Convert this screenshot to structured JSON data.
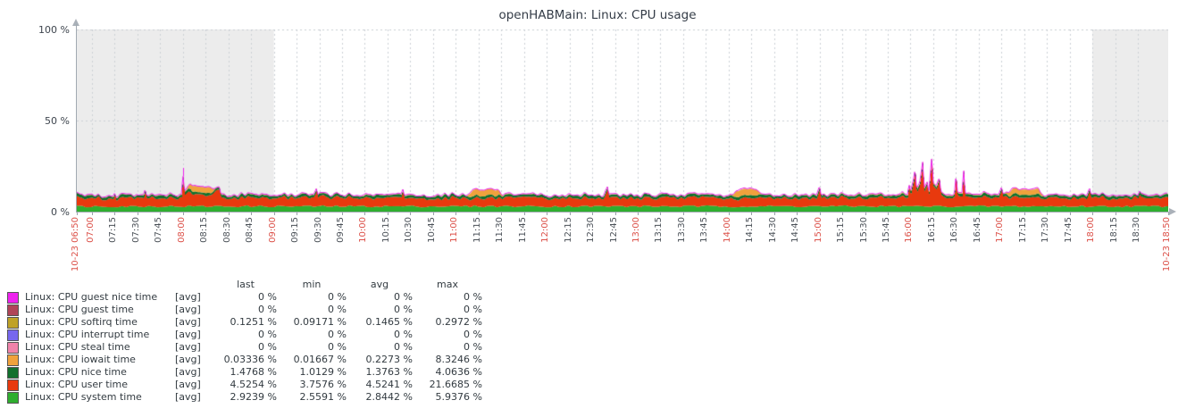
{
  "title": "openHABMain: Linux: CPU usage",
  "y_axis": {
    "labels": [
      "100 %",
      "50 %",
      "0 %"
    ],
    "min": 0,
    "max": 100
  },
  "x_axis": {
    "start_label": "10-23 06:50",
    "end_label": "10-23 18:50",
    "tick_interval_minutes": 15,
    "ticks": [
      {
        "t": 0,
        "label": "10-23 06:50",
        "red": true
      },
      {
        "t": 10,
        "label": "07:00",
        "red": true
      },
      {
        "t": 25,
        "label": "07:15",
        "red": false
      },
      {
        "t": 40,
        "label": "07:30",
        "red": false
      },
      {
        "t": 55,
        "label": "07:45",
        "red": false
      },
      {
        "t": 70,
        "label": "08:00",
        "red": true
      },
      {
        "t": 85,
        "label": "08:15",
        "red": false
      },
      {
        "t": 100,
        "label": "08:30",
        "red": false
      },
      {
        "t": 115,
        "label": "08:45",
        "red": false
      },
      {
        "t": 130,
        "label": "09:00",
        "red": true
      },
      {
        "t": 145,
        "label": "09:15",
        "red": false
      },
      {
        "t": 160,
        "label": "09:30",
        "red": false
      },
      {
        "t": 175,
        "label": "09:45",
        "red": false
      },
      {
        "t": 190,
        "label": "10:00",
        "red": true
      },
      {
        "t": 205,
        "label": "10:15",
        "red": false
      },
      {
        "t": 220,
        "label": "10:30",
        "red": false
      },
      {
        "t": 235,
        "label": "10:45",
        "red": false
      },
      {
        "t": 250,
        "label": "11:00",
        "red": true
      },
      {
        "t": 265,
        "label": "11:15",
        "red": false
      },
      {
        "t": 280,
        "label": "11:30",
        "red": false
      },
      {
        "t": 295,
        "label": "11:45",
        "red": false
      },
      {
        "t": 310,
        "label": "12:00",
        "red": true
      },
      {
        "t": 325,
        "label": "12:15",
        "red": false
      },
      {
        "t": 340,
        "label": "12:30",
        "red": false
      },
      {
        "t": 355,
        "label": "12:45",
        "red": false
      },
      {
        "t": 370,
        "label": "13:00",
        "red": true
      },
      {
        "t": 385,
        "label": "13:15",
        "red": false
      },
      {
        "t": 400,
        "label": "13:30",
        "red": false
      },
      {
        "t": 415,
        "label": "13:45",
        "red": false
      },
      {
        "t": 430,
        "label": "14:00",
        "red": true
      },
      {
        "t": 445,
        "label": "14:15",
        "red": false
      },
      {
        "t": 460,
        "label": "14:30",
        "red": false
      },
      {
        "t": 475,
        "label": "14:45",
        "red": false
      },
      {
        "t": 490,
        "label": "15:00",
        "red": true
      },
      {
        "t": 505,
        "label": "15:15",
        "red": false
      },
      {
        "t": 520,
        "label": "15:30",
        "red": false
      },
      {
        "t": 535,
        "label": "15:45",
        "red": false
      },
      {
        "t": 550,
        "label": "16:00",
        "red": true
      },
      {
        "t": 565,
        "label": "16:15",
        "red": false
      },
      {
        "t": 580,
        "label": "16:30",
        "red": false
      },
      {
        "t": 595,
        "label": "16:45",
        "red": false
      },
      {
        "t": 610,
        "label": "17:00",
        "red": true
      },
      {
        "t": 625,
        "label": "17:15",
        "red": false
      },
      {
        "t": 640,
        "label": "17:30",
        "red": false
      },
      {
        "t": 655,
        "label": "17:45",
        "red": false
      },
      {
        "t": 670,
        "label": "18:00",
        "red": true
      },
      {
        "t": 685,
        "label": "18:15",
        "red": false
      },
      {
        "t": 700,
        "label": "18:30",
        "red": false
      },
      {
        "t": 720,
        "label": "10-23 18:50",
        "red": true
      }
    ]
  },
  "working_hours_shading": {
    "gray_color": "#ececec",
    "gray_before_min": 130,
    "gray_after_min": 670
  },
  "legend": {
    "headers": [
      "last",
      "min",
      "avg",
      "max"
    ],
    "rows": [
      {
        "name": "Linux: CPU guest nice time",
        "tag": "[avg]",
        "color": "#ee22ee",
        "last": "0 %",
        "min": "0 %",
        "avg": "0 %",
        "max": "0 %"
      },
      {
        "name": "Linux: CPU guest time",
        "tag": "[avg]",
        "color": "#b04558",
        "last": "0 %",
        "min": "0 %",
        "avg": "0 %",
        "max": "0 %"
      },
      {
        "name": "Linux: CPU softirq time",
        "tag": "[avg]",
        "color": "#bfa226",
        "last": "0.1251 %",
        "min": "0.09171 %",
        "avg": "0.1465 %",
        "max": "0.2972 %"
      },
      {
        "name": "Linux: CPU interrupt time",
        "tag": "[avg]",
        "color": "#7767ee",
        "last": "0 %",
        "min": "0 %",
        "avg": "0 %",
        "max": "0 %"
      },
      {
        "name": "Linux: CPU steal time",
        "tag": "[avg]",
        "color": "#f083aa",
        "last": "0 %",
        "min": "0 %",
        "avg": "0 %",
        "max": "0 %"
      },
      {
        "name": "Linux: CPU iowait time",
        "tag": "[avg]",
        "color": "#f0a23c",
        "last": "0.03336 %",
        "min": "0.01667 %",
        "avg": "0.2273 %",
        "max": "8.3246 %"
      },
      {
        "name": "Linux: CPU nice time",
        "tag": "[avg]",
        "color": "#11702d",
        "last": "1.4768 %",
        "min": "1.0129 %",
        "avg": "1.3763 %",
        "max": "4.0636 %"
      },
      {
        "name": "Linux: CPU user time",
        "tag": "[avg]",
        "color": "#e8390e",
        "last": "4.5254 %",
        "min": "3.7576 %",
        "avg": "4.5241 %",
        "max": "21.6685 %"
      },
      {
        "name": "Linux: CPU system time",
        "tag": "[avg]",
        "color": "#2fae2f",
        "last": "2.9239 %",
        "min": "2.5591 %",
        "avg": "2.8442 %",
        "max": "5.9376 %"
      }
    ]
  },
  "chart_data": {
    "type": "area",
    "stacked": true,
    "title": "openHABMain: Linux: CPU usage",
    "ylabel": "%",
    "ylim": [
      0,
      100
    ],
    "x_range_minutes": 720,
    "time_start": "10-23 06:50",
    "time_end": "10-23 18:50",
    "grid": true,
    "legend_position": "bottom-left",
    "series": [
      {
        "name": "Linux: CPU system time",
        "color": "#2fae2f",
        "baseline": 2.9,
        "noise": 1.1,
        "keyframes": [
          [
            0,
            2.9
          ],
          [
            720,
            2.9
          ]
        ]
      },
      {
        "name": "Linux: CPU user time",
        "color": "#e8390e",
        "noise": 1.8,
        "keyframes": [
          [
            0,
            4.5
          ],
          [
            24,
            4.5
          ],
          [
            25,
            7
          ],
          [
            26,
            4.5
          ],
          [
            44,
            4.5
          ],
          [
            45,
            7.5
          ],
          [
            46,
            4.6
          ],
          [
            69,
            4.6
          ],
          [
            70,
            15
          ],
          [
            71,
            6
          ],
          [
            75,
            8
          ],
          [
            77,
            6
          ],
          [
            88,
            6
          ],
          [
            94,
            9
          ],
          [
            95,
            4.8
          ],
          [
            156,
            4.8
          ],
          [
            158,
            9
          ],
          [
            159,
            4.8
          ],
          [
            214,
            4.5
          ],
          [
            215,
            7.5
          ],
          [
            216,
            4.5
          ],
          [
            348,
            4.5
          ],
          [
            350,
            8.5
          ],
          [
            351,
            4.5
          ],
          [
            488,
            4.5
          ],
          [
            490,
            9.5
          ],
          [
            491,
            4.5
          ],
          [
            548,
            4.8
          ],
          [
            549,
            10
          ],
          [
            550,
            6
          ],
          [
            552,
            13
          ],
          [
            553,
            19
          ],
          [
            554,
            8
          ],
          [
            556,
            11
          ],
          [
            558,
            23
          ],
          [
            559,
            9
          ],
          [
            561,
            12
          ],
          [
            562,
            6
          ],
          [
            564,
            25
          ],
          [
            565,
            10
          ],
          [
            567,
            8
          ],
          [
            569,
            13
          ],
          [
            570,
            6
          ],
          [
            573,
            5
          ],
          [
            579,
            6
          ],
          [
            580,
            16
          ],
          [
            581,
            6
          ],
          [
            584,
            5
          ],
          [
            585,
            18
          ],
          [
            586,
            5
          ],
          [
            608,
            4.6
          ],
          [
            610,
            8
          ],
          [
            611,
            4.6
          ],
          [
            666,
            4.6
          ],
          [
            668,
            8.5
          ],
          [
            669,
            4.6
          ],
          [
            700,
            4.8
          ],
          [
            701,
            6.5
          ],
          [
            702,
            4.6
          ],
          [
            720,
            4.8
          ]
        ]
      },
      {
        "name": "Linux: CPU nice time",
        "color": "#11702d",
        "baseline": 1.4,
        "noise": 0.8,
        "keyframes": [
          [
            0,
            1.4
          ],
          [
            720,
            1.4
          ]
        ]
      },
      {
        "name": "Linux: CPU iowait time",
        "color": "#f0a23c",
        "noise": 0.1,
        "keyframes": [
          [
            0,
            0.05
          ],
          [
            72,
            0.1
          ],
          [
            75,
            3
          ],
          [
            88,
            3
          ],
          [
            91,
            0.1
          ],
          [
            257,
            0.1
          ],
          [
            261,
            3.2
          ],
          [
            277,
            3.2
          ],
          [
            281,
            0.1
          ],
          [
            432,
            0.1
          ],
          [
            435,
            3.3
          ],
          [
            448,
            3.3
          ],
          [
            451,
            0.1
          ],
          [
            549,
            0.3
          ],
          [
            570,
            0.3
          ],
          [
            612,
            0.1
          ],
          [
            616,
            2.8
          ],
          [
            634,
            2.8
          ],
          [
            638,
            0.1
          ],
          [
            720,
            0.05
          ]
        ]
      },
      {
        "name": "Linux: CPU softirq time",
        "color": "#bfa226",
        "baseline": 0.15,
        "noise": 0.05,
        "keyframes": [
          [
            0,
            0.15
          ],
          [
            720,
            0.15
          ]
        ]
      },
      {
        "name": "Linux: CPU steal time",
        "color": "#f083aa",
        "keyframes": [
          [
            0,
            0
          ],
          [
            720,
            0
          ]
        ]
      },
      {
        "name": "Linux: CPU interrupt time",
        "color": "#7767ee",
        "keyframes": [
          [
            0,
            0
          ],
          [
            720,
            0
          ]
        ]
      },
      {
        "name": "Linux: CPU guest time",
        "color": "#b04558",
        "keyframes": [
          [
            0,
            0
          ],
          [
            720,
            0
          ]
        ]
      },
      {
        "name": "Linux: CPU guest nice time",
        "color": "#ee22ee",
        "keyframes": [
          [
            0,
            0
          ],
          [
            720,
            0
          ]
        ]
      }
    ],
    "top_line_color": "#ee22ee",
    "top_spikes_pct": [
      [
        70,
        24
      ],
      [
        558,
        27
      ],
      [
        564,
        29
      ],
      [
        585,
        22
      ]
    ]
  }
}
